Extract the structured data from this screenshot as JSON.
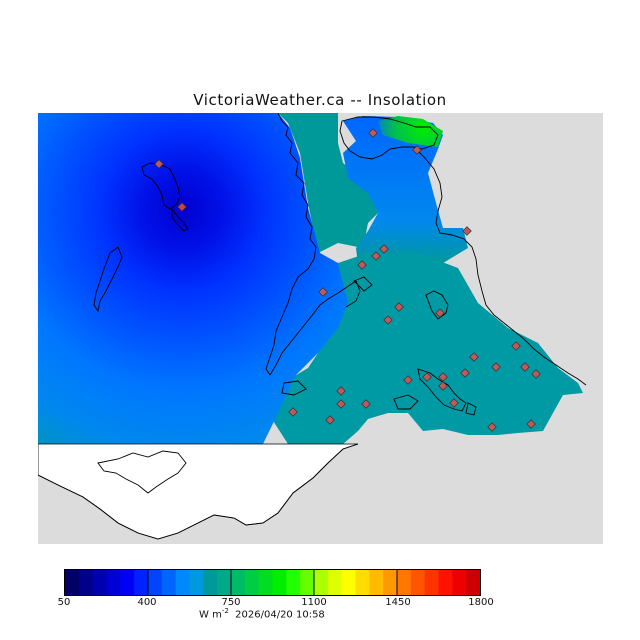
{
  "title": "VictoriaWeather.ca -- Insolation",
  "legend": {
    "ticks": [
      "50",
      "400",
      "750",
      "1100",
      "1450",
      "1800"
    ],
    "units_prefix": "W m",
    "units_exp": "-2",
    "timestamp": "2026/04/20 10:58",
    "colors": [
      "#000066",
      "#00008a",
      "#0000b0",
      "#0000d6",
      "#0000f5",
      "#0022ff",
      "#0044ff",
      "#0066ff",
      "#0088ff",
      "#0099dd",
      "#009999",
      "#00aa88",
      "#00bb66",
      "#00cc44",
      "#00dd22",
      "#00ee00",
      "#22ff00",
      "#66ff00",
      "#aaff00",
      "#ddff00",
      "#ffff00",
      "#ffdd00",
      "#ffbb00",
      "#ff9900",
      "#ff7700",
      "#ff5500",
      "#ff3300",
      "#ff1100",
      "#ee0000",
      "#cc0000"
    ]
  },
  "map": {
    "land_color": "#dcdcdc",
    "water_color": "#ffffff",
    "station_color": "#c05a5a"
  }
}
